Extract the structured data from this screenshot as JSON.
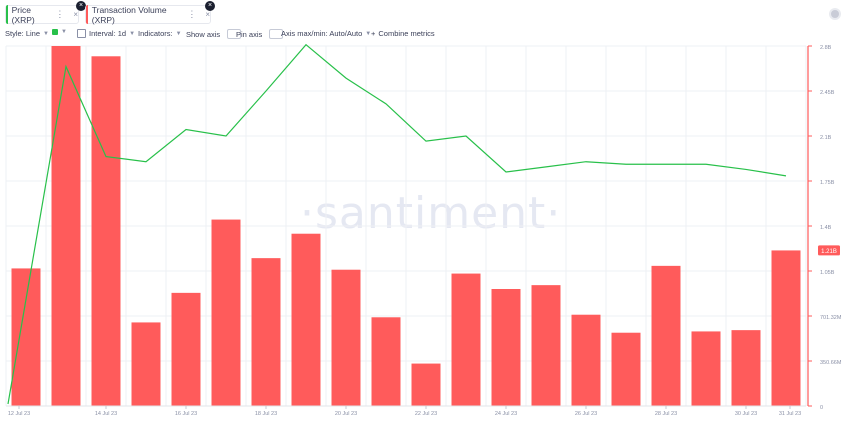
{
  "tabs": [
    {
      "label": "Price (XRP)",
      "color": "#28c04a"
    },
    {
      "label": "Transaction Volume (XRP)",
      "color": "#ff5b5b"
    }
  ],
  "toolbar": {
    "style_label": "Style: Line",
    "interval_label": "Interval: 1d",
    "indicators_label": "Indicators:",
    "show_axis_label": "Show axis",
    "pin_axis_label": "Pin axis",
    "axis_maxmin_label": "Axis max/min: Auto/Auto",
    "combine_label": "Combine metrics"
  },
  "watermark": "·santiment·",
  "chart_data": {
    "type": "bar",
    "x": [
      "12 Jul 23",
      "13 Jul 23",
      "14 Jul 23",
      "15 Jul 23",
      "16 Jul 23",
      "17 Jul 23",
      "18 Jul 23",
      "19 Jul 23",
      "20 Jul 23",
      "21 Jul 23",
      "22 Jul 23",
      "23 Jul 23",
      "24 Jul 23",
      "25 Jul 23",
      "26 Jul 23",
      "27 Jul 23",
      "28 Jul 23",
      "29 Jul 23",
      "30 Jul 23",
      "31 Jul 23"
    ],
    "x_tick_labels": [
      "12 Jul 23",
      "14 Jul 23",
      "16 Jul 23",
      "18 Jul 23",
      "20 Jul 23",
      "22 Jul 23",
      "24 Jul 23",
      "26 Jul 23",
      "28 Jul 23",
      "30 Jul 23",
      "31 Jul 23"
    ],
    "series": [
      {
        "name": "Transaction Volume (XRP)",
        "type": "bar",
        "color": "#ff5b5b",
        "values": [
          1070000000,
          2800000000,
          2720000000,
          650000000,
          880000000,
          1450000000,
          1150000000,
          1340000000,
          1060000000,
          690000000,
          330000000,
          1030000000,
          910000000,
          940000000,
          710000000,
          570000000,
          1090000000,
          580000000,
          590000000,
          1210000000
        ]
      },
      {
        "name": "Price (XRP)",
        "type": "line",
        "color": "#28c04a",
        "values": [
          0.0,
          2.64,
          1.94,
          1.9,
          2.15,
          2.1,
          2.45,
          2.81,
          2.55,
          2.35,
          2.06,
          2.1,
          1.82,
          1.86,
          1.9,
          1.88,
          1.88,
          1.88,
          1.84,
          1.79
        ]
      }
    ],
    "y_axis_tick_labels": [
      "2.8B",
      "2.45B",
      "2.1B",
      "1.75B",
      "1.4B",
      "1.05B",
      "701.32M",
      "350.66M",
      "0"
    ],
    "ylim": [
      0,
      2800000000
    ],
    "current_value_badge": "1.21B",
    "grid": true
  }
}
